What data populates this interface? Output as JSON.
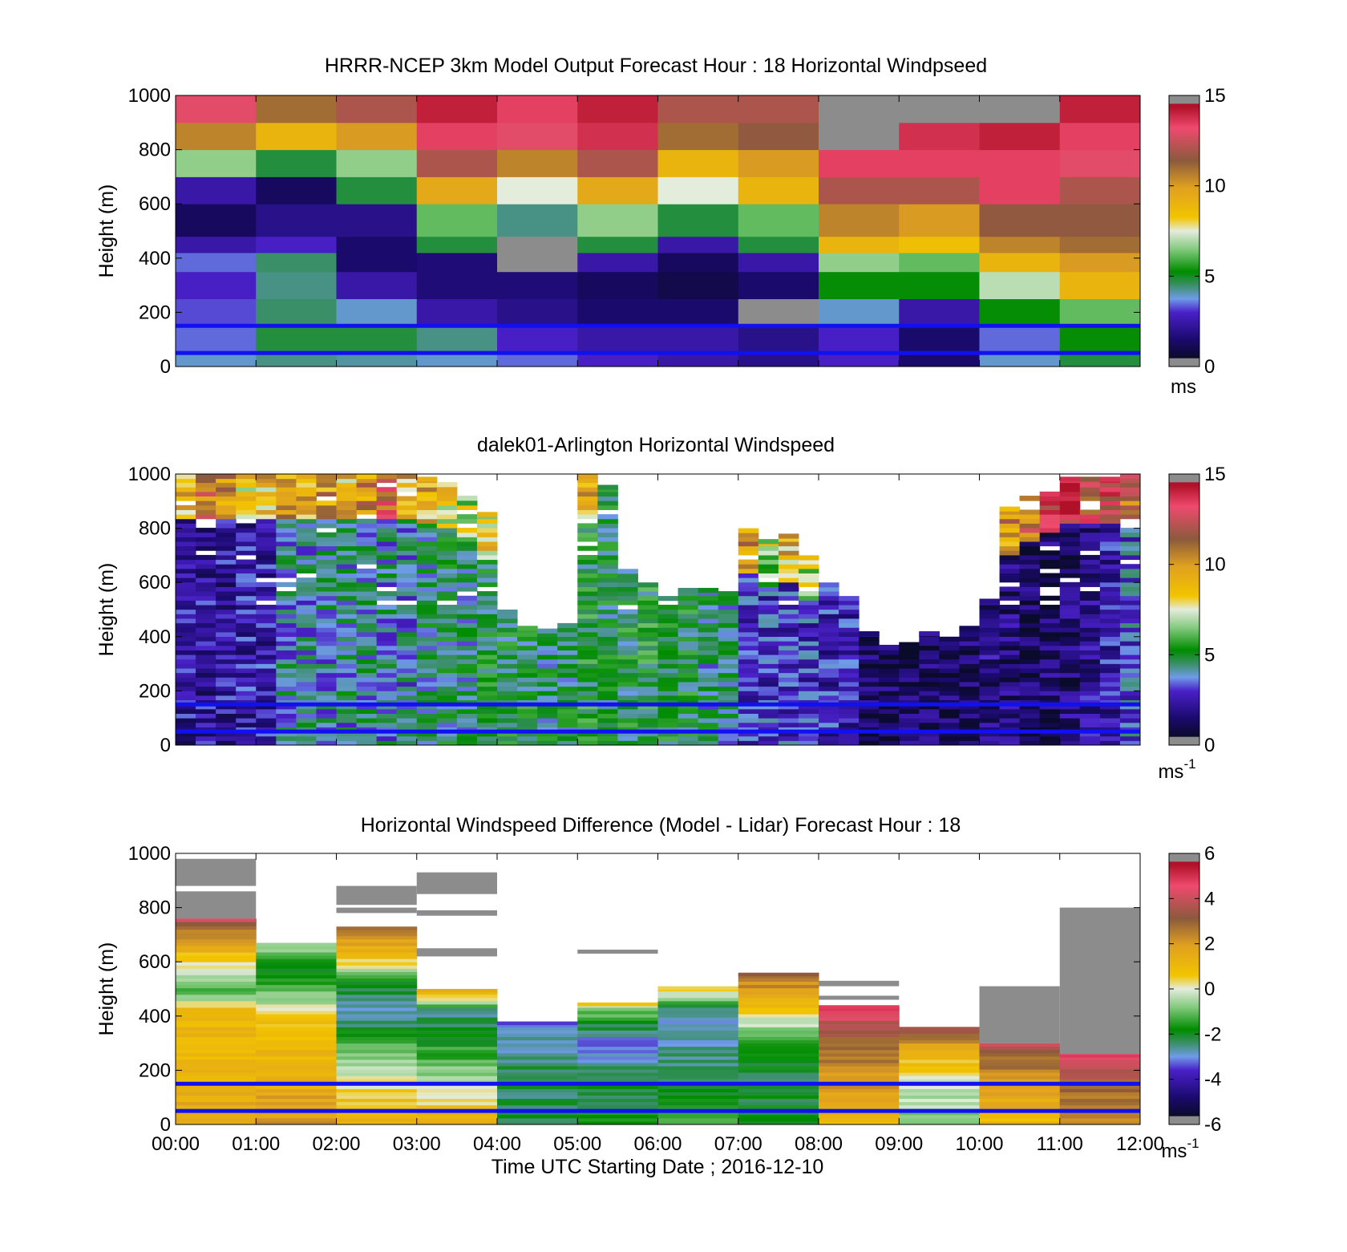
{
  "chart_data": [
    {
      "type": "heatmap",
      "title": "HRRR-NCEP 3km Model Output   Forecast Hour : 18 Horizontal Windpseed",
      "ylabel": "Height (m)",
      "xlabel": "",
      "xlim": [
        0,
        12
      ],
      "ylim": [
        0,
        1000
      ],
      "y_ticks": [
        "0",
        "200",
        "400",
        "600",
        "800",
        "1000"
      ],
      "colorbar": {
        "min": 0,
        "max": 15,
        "ticks": [
          "0",
          "5",
          "10",
          "15"
        ],
        "unit": "ms",
        "unit_sup": ""
      },
      "reference_lines_m": [
        150,
        50
      ],
      "x_hours": [
        0,
        1,
        2,
        3,
        4,
        5,
        6,
        7,
        8,
        9,
        10,
        11
      ],
      "y_bottoms_m": [
        0,
        50,
        150,
        250,
        350,
        420,
        480,
        600,
        700,
        800,
        900
      ],
      "values": [
        [
          3.5,
          4.0,
          3.8,
          3.5,
          3.0,
          2.5,
          2.0,
          1.5,
          2.5,
          1.0,
          3.5,
          4.5
        ],
        [
          3.0,
          4.5,
          4.5,
          4.0,
          2.5,
          2.0,
          2.0,
          1.5,
          2.5,
          1.0,
          3.0,
          5.0
        ],
        [
          2.8,
          4.2,
          3.5,
          2.0,
          1.5,
          1.0,
          1.0,
          0.2,
          3.5,
          2.0,
          5.0,
          6.0
        ],
        [
          2.5,
          4.0,
          2.0,
          1.2,
          1.2,
          0.8,
          0.5,
          1.0,
          5.0,
          5.0,
          7.0,
          9.0
        ],
        [
          3.0,
          4.2,
          1.0,
          1.2,
          0.2,
          2.0,
          0.8,
          2.0,
          6.5,
          6.0,
          9.0,
          10.0
        ],
        [
          2.0,
          2.5,
          1.0,
          4.5,
          0.2,
          4.5,
          2.0,
          4.5,
          9.0,
          8.5,
          10.5,
          11.0
        ],
        [
          0.8,
          1.5,
          1.5,
          6.0,
          4.0,
          6.5,
          4.5,
          6.0,
          10.5,
          10.0,
          11.5,
          11.5
        ],
        [
          2.0,
          0.8,
          4.5,
          9.5,
          7.5,
          9.5,
          7.5,
          9.0,
          12.0,
          12.0,
          13.5,
          12.0
        ],
        [
          6.5,
          4.5,
          6.5,
          12.0,
          10.5,
          12.0,
          9.0,
          10.0,
          13.5,
          13.5,
          13.5,
          13.0
        ],
        [
          10.5,
          9.0,
          10.0,
          13.5,
          13.0,
          14.0,
          11.0,
          11.5,
          0.2,
          14.0,
          14.5,
          13.5
        ],
        [
          13.0,
          11.0,
          12.0,
          14.5,
          13.5,
          14.5,
          12.0,
          12.0,
          0.2,
          0.2,
          0.2,
          14.5
        ]
      ]
    },
    {
      "type": "heatmap",
      "title": "dalek01-Arlington  Horizontal Windspeed",
      "ylabel": "Height (m)",
      "xlabel": "",
      "xlim": [
        0,
        12
      ],
      "ylim": [
        0,
        1000
      ],
      "y_ticks": [
        "0",
        "200",
        "400",
        "600",
        "800",
        "1000"
      ],
      "colorbar": {
        "min": 0,
        "max": 15,
        "ticks": [
          "0",
          "5",
          "10",
          "15"
        ],
        "unit": "ms",
        "unit_sup": "-1"
      },
      "reference_lines_m": [
        150,
        50
      ],
      "x_hours": [
        0,
        0.25,
        0.5,
        0.75,
        1,
        1.25,
        1.5,
        1.75,
        2,
        2.25,
        2.5,
        2.75,
        3,
        3.25,
        3.5,
        3.75,
        4,
        4.25,
        4.5,
        4.75,
        5,
        5.25,
        5.5,
        5.75,
        6,
        6.25,
        6.5,
        6.75,
        7,
        7.25,
        7.5,
        7.75,
        8,
        8.25,
        8.5,
        8.75,
        9,
        9.25,
        9.5,
        9.75,
        10,
        10.25,
        10.5,
        10.75,
        11,
        11.25,
        11.5,
        11.75
      ],
      "column_top_m": [
        1000,
        1000,
        1000,
        1000,
        1000,
        1000,
        1000,
        1000,
        1000,
        1000,
        1000,
        1000,
        990,
        970,
        920,
        860,
        500,
        440,
        430,
        450,
        1000,
        960,
        650,
        600,
        550,
        580,
        580,
        570,
        800,
        760,
        780,
        700,
        600,
        550,
        420,
        370,
        380,
        420,
        400,
        440,
        540,
        880,
        920,
        950,
        990,
        990,
        990,
        1000
      ],
      "column_mean_speed_ms": [
        1.8,
        1.8,
        1.8,
        2.0,
        2.0,
        3.5,
        3.6,
        3.6,
        3.8,
        3.8,
        3.6,
        3.5,
        4.0,
        4.2,
        4.0,
        4.5,
        4.5,
        4.5,
        4.2,
        4.3,
        4.8,
        4.5,
        4.6,
        4.8,
        4.6,
        4.6,
        4.0,
        4.0,
        2.4,
        2.5,
        2.6,
        2.5,
        2.2,
        2.3,
        0.8,
        0.8,
        0.8,
        0.8,
        0.8,
        0.8,
        1.5,
        1.2,
        0.8,
        1.0,
        1.2,
        1.6,
        2.0,
        3.0
      ],
      "upper_layer_speed_ms": [
        9,
        11,
        10,
        8,
        9,
        10,
        9,
        10,
        9,
        10,
        12,
        9,
        9,
        8,
        7,
        8,
        0,
        0,
        0,
        0,
        9,
        0,
        0,
        0,
        0,
        0,
        0,
        0,
        10,
        7,
        9,
        7,
        0,
        0,
        0,
        0,
        0,
        0,
        0,
        0,
        0,
        10,
        11,
        13,
        14,
        12,
        13,
        11
      ]
    },
    {
      "type": "heatmap",
      "title": "Horizontal Windspeed Difference (Model - Lidar) Forecast Hour : 18",
      "ylabel": "Height (m)",
      "xlabel": "Time UTC  Starting Date ; 2016-12-10",
      "xlim": [
        0,
        12
      ],
      "ylim": [
        0,
        1000
      ],
      "x_ticks": [
        "00:00",
        "01:00",
        "02:00",
        "03:00",
        "04:00",
        "05:00",
        "06:00",
        "07:00",
        "08:00",
        "09:00",
        "10:00",
        "11:00",
        "12:00"
      ],
      "y_ticks": [
        "0",
        "200",
        "400",
        "600",
        "800",
        "1000"
      ],
      "colorbar": {
        "min": -6,
        "max": 6,
        "ticks": [
          "-6",
          "-4",
          "-2",
          "0",
          "2",
          "4",
          "6"
        ],
        "unit": "ms",
        "unit_sup": "-1"
      },
      "reference_lines_m": [
        150,
        50
      ],
      "x_hours": [
        0,
        1,
        2,
        3,
        4,
        5,
        6,
        7,
        8,
        9,
        10,
        11
      ],
      "column_top_m": [
        760,
        670,
        730,
        500,
        380,
        450,
        510,
        560,
        440,
        360,
        300,
        260
      ],
      "difference_profile": [
        [
          [
            0,
            2.0
          ],
          [
            150,
            1.0
          ],
          [
            420,
            1.0
          ],
          [
            480,
            -1.5
          ],
          [
            600,
            0.5
          ],
          [
            700,
            2.5
          ],
          [
            760,
            4.0
          ]
        ],
        [
          [
            0,
            2.0
          ],
          [
            150,
            1.5
          ],
          [
            400,
            0.5
          ],
          [
            450,
            -0.5
          ],
          [
            550,
            -2.0
          ],
          [
            620,
            -1.5
          ],
          [
            670,
            0.0
          ]
        ],
        [
          [
            0,
            1.5
          ],
          [
            150,
            0.0
          ],
          [
            250,
            -1.0
          ],
          [
            400,
            -3.0
          ],
          [
            500,
            -2.5
          ],
          [
            580,
            0.0
          ],
          [
            650,
            1.5
          ],
          [
            730,
            3.0
          ]
        ],
        [
          [
            0,
            1.5
          ],
          [
            150,
            -0.5
          ],
          [
            300,
            -2.0
          ],
          [
            420,
            -3.0
          ],
          [
            460,
            0.5
          ],
          [
            500,
            1.5
          ]
        ],
        [
          [
            0,
            -2.5
          ],
          [
            150,
            -2.5
          ],
          [
            300,
            -3.0
          ],
          [
            360,
            -3.5
          ],
          [
            380,
            -4.2
          ]
        ],
        [
          [
            0,
            -2.0
          ],
          [
            150,
            -2.5
          ],
          [
            300,
            -3.5
          ],
          [
            420,
            -1.0
          ],
          [
            450,
            1.5
          ]
        ],
        [
          [
            0,
            -1.5
          ],
          [
            150,
            -2.5
          ],
          [
            300,
            -3.0
          ],
          [
            420,
            -3.0
          ],
          [
            470,
            -0.5
          ],
          [
            510,
            1.0
          ]
        ],
        [
          [
            0,
            -2.0
          ],
          [
            150,
            -2.5
          ],
          [
            300,
            -1.5
          ],
          [
            420,
            0.5
          ],
          [
            500,
            2.0
          ],
          [
            560,
            3.0
          ]
        ],
        [
          [
            0,
            1.0
          ],
          [
            150,
            2.0
          ],
          [
            300,
            3.0
          ],
          [
            380,
            4.0
          ],
          [
            440,
            5.0
          ]
        ],
        [
          [
            0,
            -1.0
          ],
          [
            150,
            0.0
          ],
          [
            250,
            1.0
          ],
          [
            330,
            3.0
          ],
          [
            360,
            4.5
          ]
        ],
        [
          [
            0,
            1.0
          ],
          [
            150,
            2.0
          ],
          [
            250,
            3.0
          ],
          [
            300,
            5.0
          ]
        ],
        [
          [
            0,
            2.0
          ],
          [
            150,
            3.0
          ],
          [
            260,
            5.0
          ]
        ]
      ],
      "missing_blocks": [
        {
          "hour_from": 0,
          "hour_to": 1,
          "height_from_m": 760,
          "height_to_m": 860
        },
        {
          "hour_from": 0,
          "hour_to": 1,
          "height_from_m": 880,
          "height_to_m": 980
        },
        {
          "hour_from": 2,
          "hour_to": 3,
          "height_from_m": 780,
          "height_to_m": 800
        },
        {
          "hour_from": 2,
          "hour_to": 3,
          "height_from_m": 810,
          "height_to_m": 880
        },
        {
          "hour_from": 3,
          "hour_to": 4,
          "height_from_m": 620,
          "height_to_m": 650
        },
        {
          "hour_from": 3,
          "hour_to": 4,
          "height_from_m": 770,
          "height_to_m": 790
        },
        {
          "hour_from": 3,
          "hour_to": 4,
          "height_from_m": 850,
          "height_to_m": 930
        },
        {
          "hour_from": 5,
          "hour_to": 6,
          "height_from_m": 630,
          "height_to_m": 645
        },
        {
          "hour_from": 8,
          "hour_to": 9,
          "height_from_m": 510,
          "height_to_m": 530
        },
        {
          "hour_from": 8,
          "hour_to": 9,
          "height_from_m": 460,
          "height_to_m": 475
        },
        {
          "hour_from": 10,
          "hour_to": 11,
          "height_from_m": 300,
          "height_to_m": 510
        },
        {
          "hour_from": 11,
          "hour_to": 12,
          "height_from_m": 260,
          "height_to_m": 800
        }
      ]
    }
  ]
}
